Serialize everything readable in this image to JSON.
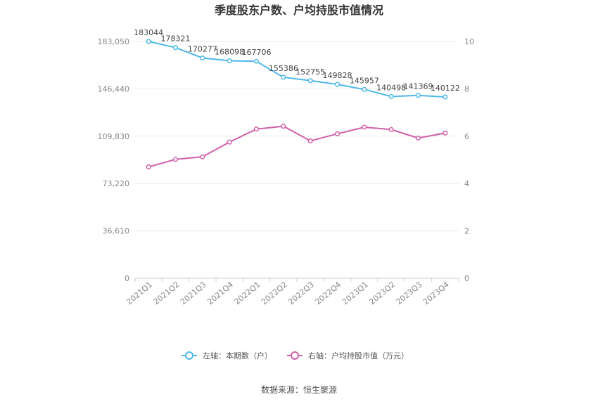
{
  "chart_data": {
    "type": "line",
    "title": "季度股东户数、户均持股市值情况",
    "categories": [
      "2021Q1",
      "2021Q2",
      "2021Q3",
      "2021Q4",
      "2022Q1",
      "2022Q2",
      "2022Q3",
      "2022Q4",
      "2023Q1",
      "2023Q2",
      "2023Q3",
      "2023Q4"
    ],
    "left_axis": {
      "ticks": [
        "0",
        "36,610",
        "73,220",
        "109,830",
        "146,440",
        "183,050"
      ],
      "ylim": [
        0,
        183050
      ]
    },
    "right_axis": {
      "ticks": [
        "0",
        "2",
        "4",
        "6",
        "8",
        "10"
      ],
      "ylim": [
        0,
        10
      ]
    },
    "series": [
      {
        "name": "左轴：本期数（户）",
        "axis": "left",
        "color": "#4db8ea",
        "values": [
          183044,
          178321,
          170277,
          168098,
          167706,
          155386,
          152755,
          149828,
          145957,
          140498,
          141369,
          140122
        ],
        "labels": [
          "183044",
          "178321",
          "170277",
          "168098",
          "167706",
          "155386",
          "152755",
          "149828",
          "145957",
          "140498",
          "141369",
          "140122"
        ]
      },
      {
        "name": "右轴：户均持股市值（万元）",
        "axis": "right",
        "color": "#d15fa8",
        "values": [
          4.7,
          5.02,
          5.13,
          5.75,
          6.3,
          6.42,
          5.8,
          6.1,
          6.38,
          6.28,
          5.92,
          6.13
        ]
      }
    ],
    "grid": true,
    "legend_position": "bottom"
  },
  "source": "数据来源：恒生聚源"
}
